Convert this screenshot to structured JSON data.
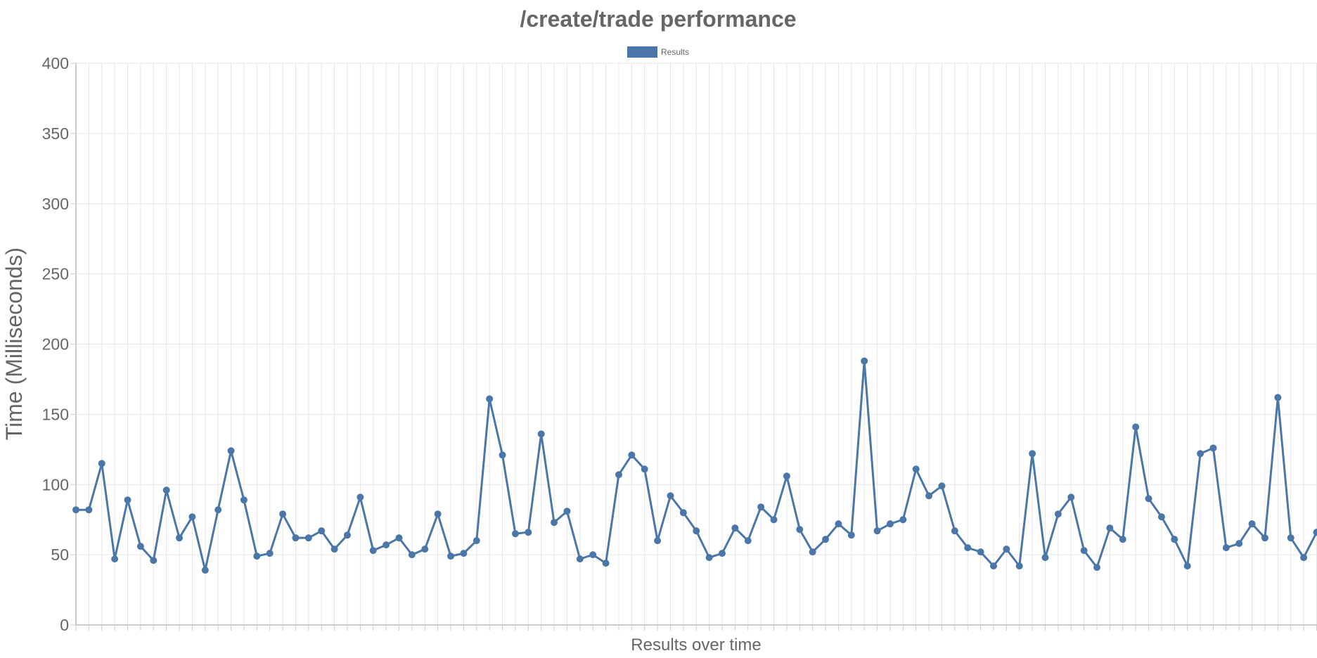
{
  "chart_data": {
    "type": "line",
    "title": "/create/trade performance",
    "xlabel": "Results over time",
    "ylabel": "Time (Milliseconds)",
    "ylim": [
      0,
      400
    ],
    "yticks": [
      "0",
      "50",
      "100",
      "150",
      "200",
      "250",
      "300",
      "350",
      "400"
    ],
    "grid": true,
    "legend_position": "top",
    "series": [
      {
        "name": "Results",
        "color": "#4a77a8",
        "values": [
          82,
          82,
          115,
          47,
          89,
          56,
          46,
          96,
          62,
          77,
          39,
          82,
          124,
          89,
          49,
          51,
          79,
          62,
          62,
          67,
          54,
          64,
          91,
          53,
          57,
          62,
          50,
          54,
          79,
          49,
          51,
          60,
          161,
          121,
          65,
          66,
          136,
          73,
          81,
          47,
          50,
          44,
          107,
          121,
          111,
          60,
          92,
          80,
          67,
          48,
          51,
          69,
          60,
          84,
          75,
          106,
          68,
          52,
          61,
          72,
          64,
          188,
          67,
          72,
          75,
          111,
          92,
          99,
          67,
          55,
          52,
          42,
          54,
          42,
          122,
          48,
          79,
          91,
          53,
          41,
          69,
          61,
          141,
          90,
          77,
          61,
          42,
          122,
          126,
          55,
          58,
          72,
          62,
          162,
          62,
          48,
          66
        ]
      }
    ]
  }
}
